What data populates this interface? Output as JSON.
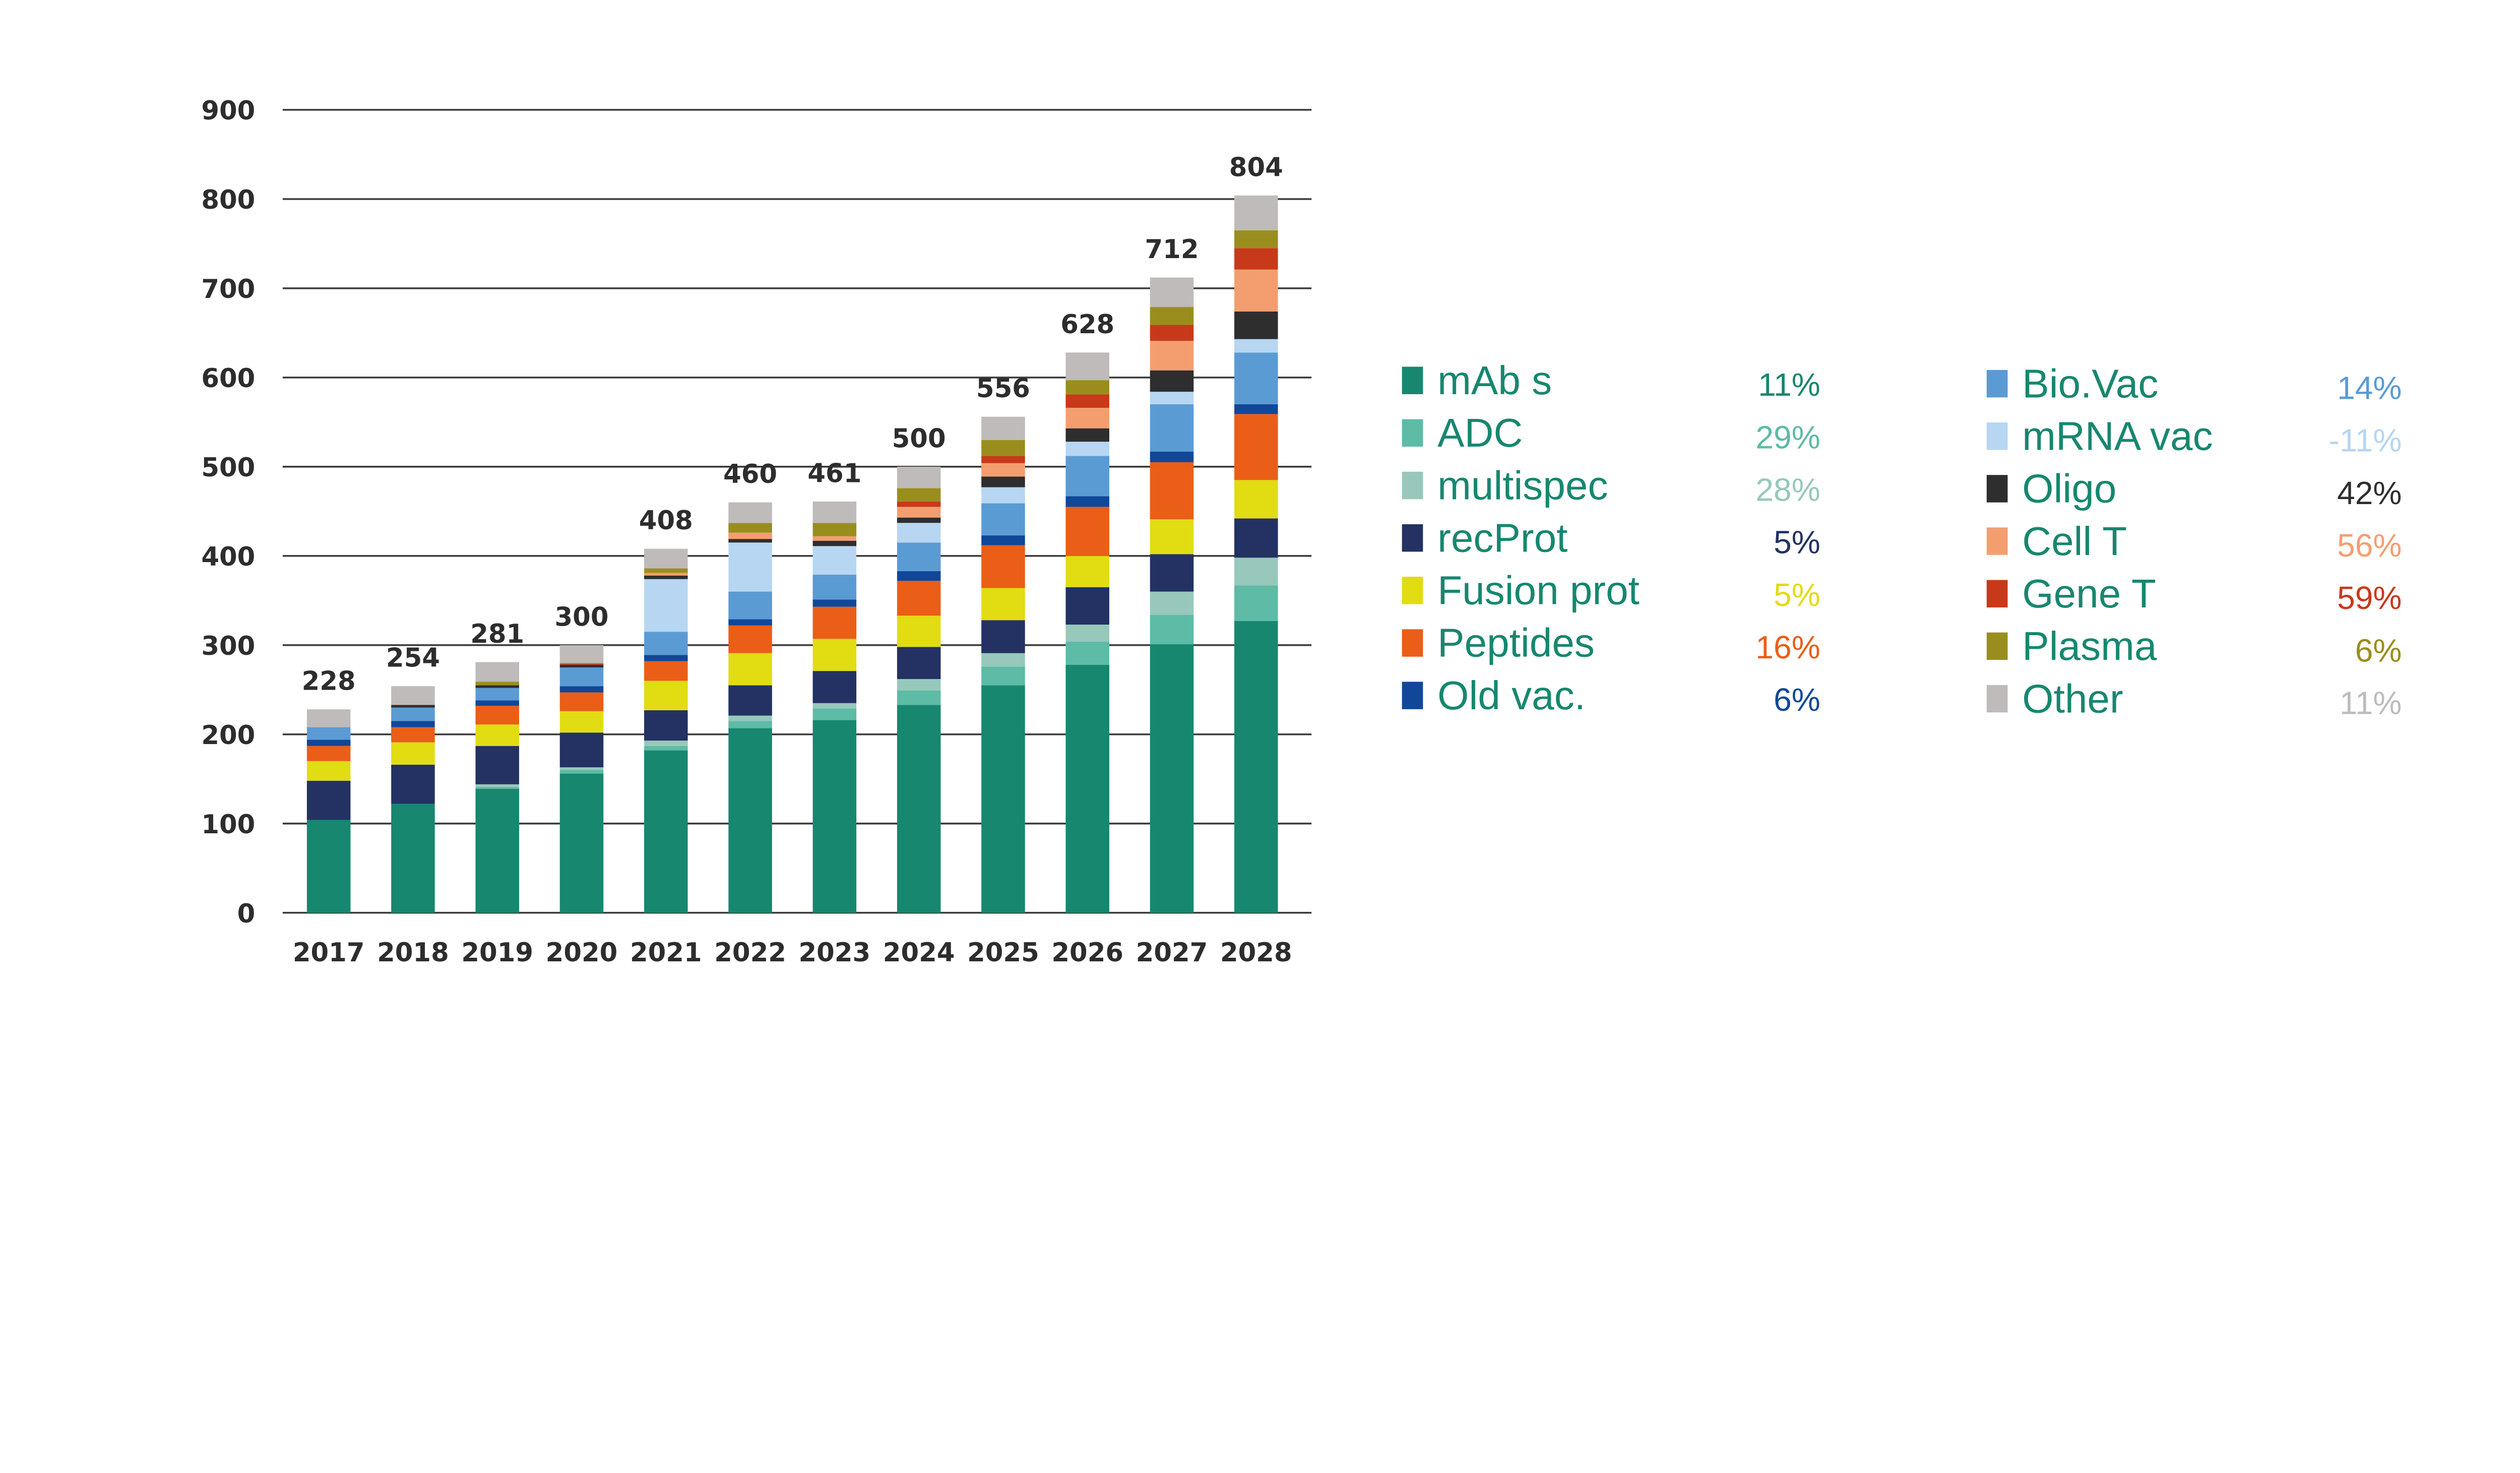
{
  "chart_data": {
    "type": "bar",
    "stacked": true,
    "title": "",
    "xlabel": "",
    "ylabel": "",
    "ylim": [
      0,
      900
    ],
    "yticks": [
      0,
      100,
      200,
      300,
      400,
      500,
      600,
      700,
      800,
      900
    ],
    "grid": true,
    "legend_placement": "right",
    "categories": [
      "2017",
      "2018",
      "2019",
      "2020",
      "2021",
      "2022",
      "2023",
      "2024",
      "2025",
      "2026",
      "2027",
      "2028"
    ],
    "totals": [
      228,
      254,
      281,
      300,
      408,
      460,
      461,
      500,
      556,
      628,
      712,
      804
    ],
    "series": [
      {
        "name": "mAb s",
        "color": "#17876f",
        "growth": "11%",
        "values": [
          104,
          122,
          139,
          156,
          182,
          207,
          216,
          233,
          255,
          278,
          301,
          327
        ]
      },
      {
        "name": "ADC",
        "color": "#5dbba6",
        "growth": "29%",
        "values": [
          0,
          0,
          2,
          4,
          5,
          8,
          13,
          16,
          21,
          26,
          33,
          40
        ]
      },
      {
        "name": "multispec",
        "color": "#97c8bb",
        "growth": "28%",
        "values": [
          0,
          0,
          3,
          3,
          6,
          6,
          6,
          13,
          15,
          19,
          26,
          31
        ]
      },
      {
        "name": "recProt",
        "color": "#233262",
        "growth": "5%",
        "values": [
          44,
          44,
          43,
          39,
          34,
          34,
          36,
          36,
          37,
          42,
          42,
          44
        ]
      },
      {
        "name": "Fusion prot",
        "color": "#e2dc13",
        "growth": "5%",
        "values": [
          22,
          25,
          24,
          24,
          33,
          36,
          36,
          35,
          36,
          35,
          39,
          43
        ]
      },
      {
        "name": "Peptides",
        "color": "#eb5e17",
        "growth": "16%",
        "values": [
          17,
          17,
          21,
          21,
          22,
          31,
          36,
          39,
          48,
          55,
          64,
          74
        ]
      },
      {
        "name": "Old vac.",
        "color": "#114799",
        "growth": "6%",
        "values": [
          7,
          7,
          6,
          7,
          7,
          7,
          8,
          11,
          11,
          12,
          12,
          11
        ]
      },
      {
        "name": "Bio.Vac",
        "color": "#5b9bd4",
        "growth": "14%",
        "values": [
          14,
          15,
          14,
          21,
          26,
          31,
          28,
          32,
          36,
          45,
          53,
          58
        ]
      },
      {
        "name": "mRNA vac",
        "color": "#b7d6f1",
        "growth": "-11%",
        "values": [
          0,
          0,
          0,
          0,
          59,
          55,
          32,
          22,
          18,
          16,
          14,
          15
        ]
      },
      {
        "name": "Oligo",
        "color": "#2e2e2e",
        "growth": "42%",
        "values": [
          0,
          3,
          3,
          3,
          4,
          4,
          6,
          6,
          12,
          15,
          24,
          31
        ]
      },
      {
        "name": "Cell T",
        "color": "#f49e70",
        "growth": "56%",
        "values": [
          0,
          0,
          0,
          0,
          3,
          7,
          5,
          12,
          15,
          23,
          33,
          47
        ]
      },
      {
        "name": "Gene T",
        "color": "#c8391a",
        "growth": "59%",
        "values": [
          0,
          0,
          0,
          1,
          0,
          0,
          0,
          6,
          8,
          15,
          18,
          24
        ]
      },
      {
        "name": "Plasma",
        "color": "#998e1d",
        "growth": "6%",
        "values": [
          0,
          0,
          4,
          1,
          5,
          11,
          15,
          15,
          18,
          16,
          20,
          20
        ]
      },
      {
        "name": "Other",
        "color": "#bfbbbb",
        "growth": "11%",
        "values": [
          20,
          21,
          22,
          20,
          22,
          23,
          24,
          24,
          26,
          31,
          33,
          39
        ]
      }
    ]
  }
}
